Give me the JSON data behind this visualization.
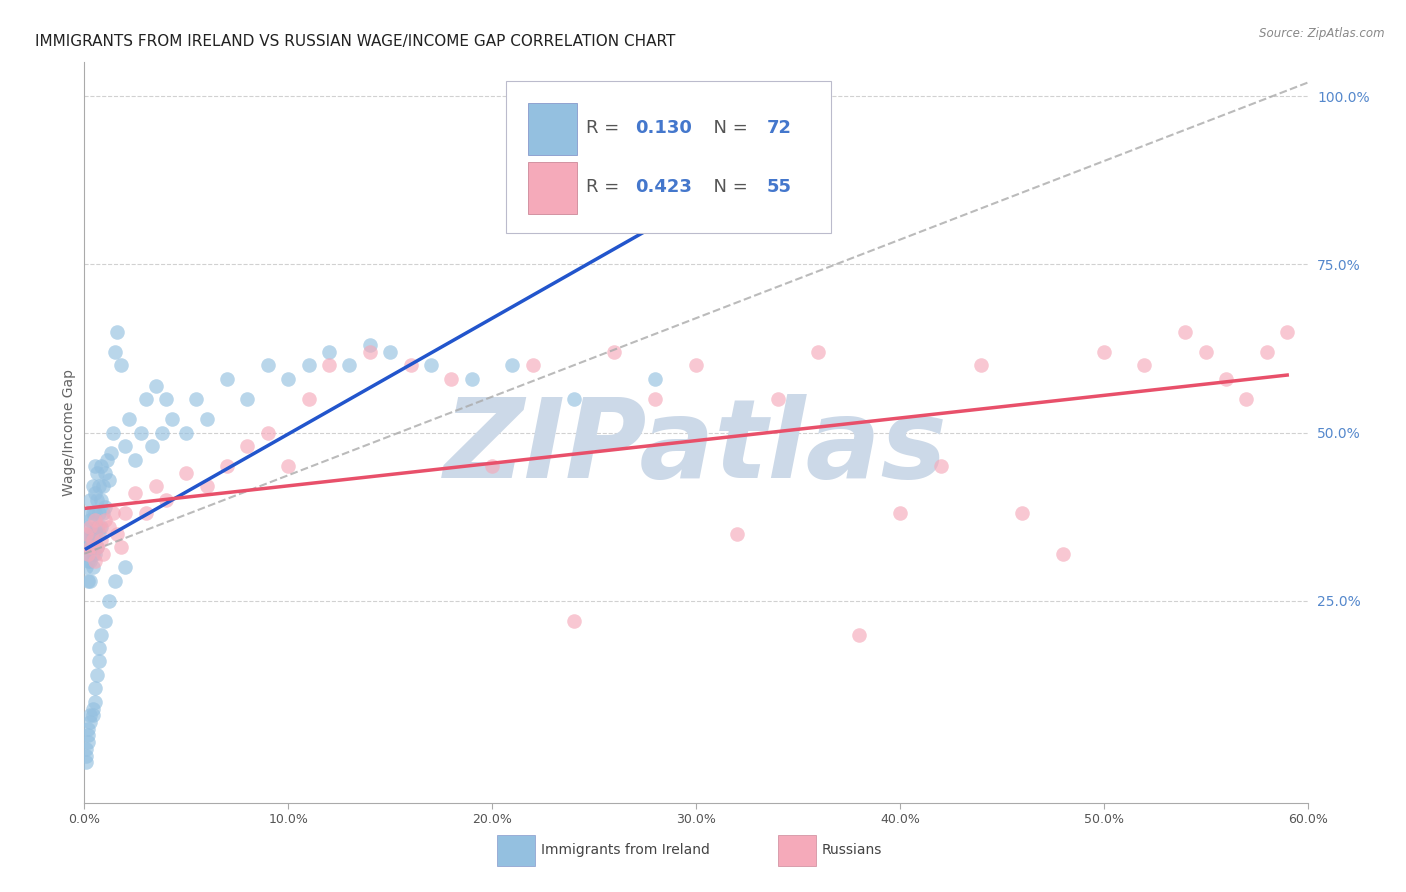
{
  "title": "IMMIGRANTS FROM IRELAND VS RUSSIAN WAGE/INCOME GAP CORRELATION CHART",
  "source": "Source: ZipAtlas.com",
  "ylabel": "Wage/Income Gap",
  "legend_label_1": "Immigrants from Ireland",
  "legend_label_2": "Russians",
  "R1": 0.13,
  "N1": 72,
  "R2": 0.423,
  "N2": 55,
  "color_blue": "#94c0e0",
  "color_pink": "#f5aaba",
  "color_blue_line": "#2255cc",
  "color_pink_line": "#e8506a",
  "color_dashed": "#aaaaaa",
  "xlim": [
    0.0,
    0.6
  ],
  "ylim": [
    -0.05,
    1.05
  ],
  "ylim_display": [
    0.0,
    1.0
  ],
  "xtick_labels": [
    "0.0%",
    "10.0%",
    "20.0%",
    "30.0%",
    "40.0%",
    "50.0%",
    "60.0%"
  ],
  "xtick_values": [
    0.0,
    0.1,
    0.2,
    0.3,
    0.4,
    0.5,
    0.6
  ],
  "ytick_labels_right": [
    "25.0%",
    "50.0%",
    "75.0%",
    "100.0%"
  ],
  "ytick_values_right": [
    0.25,
    0.5,
    0.75,
    1.0
  ],
  "blue_x": [
    0.001,
    0.001,
    0.001,
    0.001,
    0.002,
    0.002,
    0.002,
    0.002,
    0.002,
    0.003,
    0.003,
    0.003,
    0.003,
    0.003,
    0.004,
    0.004,
    0.004,
    0.004,
    0.004,
    0.005,
    0.005,
    0.005,
    0.005,
    0.005,
    0.006,
    0.006,
    0.006,
    0.006,
    0.007,
    0.007,
    0.007,
    0.008,
    0.008,
    0.008,
    0.009,
    0.009,
    0.01,
    0.01,
    0.011,
    0.012,
    0.013,
    0.014,
    0.015,
    0.016,
    0.018,
    0.02,
    0.022,
    0.025,
    0.028,
    0.03,
    0.033,
    0.035,
    0.038,
    0.04,
    0.043,
    0.05,
    0.055,
    0.06,
    0.07,
    0.08,
    0.09,
    0.1,
    0.11,
    0.12,
    0.13,
    0.14,
    0.15,
    0.17,
    0.19,
    0.21,
    0.24,
    0.28
  ],
  "blue_y": [
    0.34,
    0.36,
    0.32,
    0.3,
    0.38,
    0.35,
    0.33,
    0.31,
    0.28,
    0.4,
    0.37,
    0.34,
    0.31,
    0.28,
    0.42,
    0.38,
    0.35,
    0.32,
    0.3,
    0.45,
    0.41,
    0.38,
    0.35,
    0.32,
    0.44,
    0.4,
    0.36,
    0.33,
    0.42,
    0.38,
    0.35,
    0.45,
    0.4,
    0.36,
    0.42,
    0.38,
    0.44,
    0.39,
    0.46,
    0.43,
    0.47,
    0.5,
    0.62,
    0.65,
    0.6,
    0.48,
    0.52,
    0.46,
    0.5,
    0.55,
    0.48,
    0.57,
    0.5,
    0.55,
    0.52,
    0.5,
    0.55,
    0.52,
    0.58,
    0.55,
    0.6,
    0.58,
    0.6,
    0.62,
    0.6,
    0.63,
    0.62,
    0.6,
    0.58,
    0.6,
    0.55,
    0.58
  ],
  "blue_y_low": [
    0.01,
    0.02,
    0.03,
    0.04,
    0.05,
    0.06,
    0.07,
    0.08,
    0.08,
    0.09,
    0.1,
    0.12,
    0.14,
    0.16,
    0.18,
    0.2,
    0.22,
    0.25,
    0.28,
    0.3
  ],
  "blue_x_low": [
    0.001,
    0.001,
    0.001,
    0.002,
    0.002,
    0.002,
    0.003,
    0.003,
    0.004,
    0.004,
    0.005,
    0.005,
    0.006,
    0.007,
    0.007,
    0.008,
    0.01,
    0.012,
    0.015,
    0.02
  ],
  "pink_x": [
    0.001,
    0.002,
    0.003,
    0.003,
    0.004,
    0.005,
    0.005,
    0.006,
    0.007,
    0.008,
    0.009,
    0.01,
    0.012,
    0.014,
    0.016,
    0.018,
    0.02,
    0.025,
    0.03,
    0.035,
    0.04,
    0.05,
    0.06,
    0.07,
    0.08,
    0.09,
    0.1,
    0.11,
    0.12,
    0.14,
    0.16,
    0.18,
    0.2,
    0.22,
    0.24,
    0.26,
    0.28,
    0.3,
    0.32,
    0.34,
    0.36,
    0.38,
    0.4,
    0.42,
    0.44,
    0.46,
    0.48,
    0.5,
    0.52,
    0.54,
    0.55,
    0.56,
    0.57,
    0.58,
    0.59
  ],
  "pink_y": [
    0.35,
    0.32,
    0.36,
    0.33,
    0.34,
    0.31,
    0.37,
    0.33,
    0.36,
    0.34,
    0.32,
    0.37,
    0.36,
    0.38,
    0.35,
    0.33,
    0.38,
    0.41,
    0.38,
    0.42,
    0.4,
    0.44,
    0.42,
    0.45,
    0.48,
    0.5,
    0.45,
    0.55,
    0.6,
    0.62,
    0.6,
    0.58,
    0.45,
    0.6,
    0.22,
    0.62,
    0.55,
    0.6,
    0.35,
    0.55,
    0.62,
    0.2,
    0.38,
    0.45,
    0.6,
    0.38,
    0.32,
    0.62,
    0.6,
    0.65,
    0.62,
    0.58,
    0.55,
    0.62,
    0.65
  ],
  "watermark_text": "ZIPatlas",
  "watermark_color": "#ccd9e8",
  "background_color": "#ffffff",
  "grid_color": "#cccccc",
  "title_fontsize": 11,
  "axis_label_fontsize": 10,
  "tick_fontsize": 9,
  "legend_text_color": "#4477cc",
  "legend_box_color": "#ddddee"
}
